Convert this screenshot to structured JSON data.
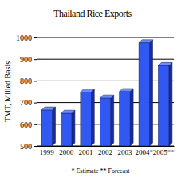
{
  "chart_data": {
    "type": "bar",
    "title": "Thailand Rice Exports",
    "y_label": "TMT, Milled Basis",
    "categories": [
      "1999",
      "2000",
      "2001",
      "2002",
      "2003",
      "2004*",
      "2005**"
    ],
    "values": [
      665,
      650,
      748,
      720,
      750,
      975,
      870
    ],
    "color": "#3158f0",
    "ylim": [
      500,
      1000
    ],
    "yticks": [
      500,
      600,
      700,
      800,
      900,
      1000
    ],
    "grid": true,
    "annotation": "* Estimate ** Forecast"
  }
}
